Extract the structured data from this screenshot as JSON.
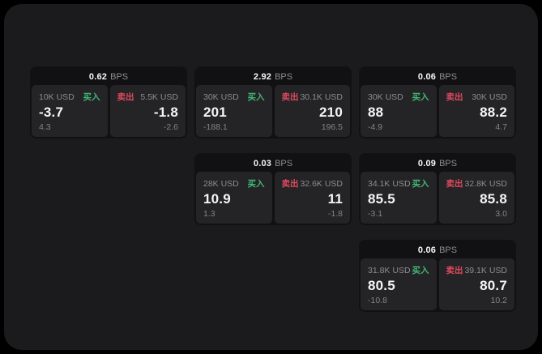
{
  "colors": {
    "page_bg": "#000000",
    "panel_bg": "#1b1b1d",
    "card_bg": "#111113",
    "tile_bg": "#242426",
    "buy": "#41b877",
    "sell": "#de4a5e",
    "text_primary": "#f5f5f6",
    "text_muted": "#8c8c90",
    "text_dim": "#838387"
  },
  "labels": {
    "bps_unit": "BPS",
    "buy": "买入",
    "sell": "卖出"
  },
  "cards": [
    {
      "grid": {
        "row": 1,
        "col": 1
      },
      "bps": "0.62",
      "buy": {
        "amount": "10K USD",
        "value": "-3.7",
        "delta": "4.3"
      },
      "sell": {
        "amount": "5.5K USD",
        "value": "-1.8",
        "delta": "-2.6"
      }
    },
    {
      "grid": {
        "row": 1,
        "col": 2
      },
      "bps": "2.92",
      "buy": {
        "amount": "30K USD",
        "value": "201",
        "delta": "-188.1"
      },
      "sell": {
        "amount": "30.1K USD",
        "value": "210",
        "delta": "196.5"
      }
    },
    {
      "grid": {
        "row": 1,
        "col": 3
      },
      "bps": "0.06",
      "buy": {
        "amount": "30K USD",
        "value": "88",
        "delta": "-4.9"
      },
      "sell": {
        "amount": "30K USD",
        "value": "88.2",
        "delta": "4.7"
      }
    },
    {
      "grid": {
        "row": 2,
        "col": 2
      },
      "bps": "0.03",
      "buy": {
        "amount": "28K USD",
        "value": "10.9",
        "delta": "1.3"
      },
      "sell": {
        "amount": "32.6K USD",
        "value": "11",
        "delta": "-1.8"
      }
    },
    {
      "grid": {
        "row": 2,
        "col": 3
      },
      "bps": "0.09",
      "buy": {
        "amount": "34.1K USD",
        "value": "85.5",
        "delta": "-3.1"
      },
      "sell": {
        "amount": "32.8K USD",
        "value": "85.8",
        "delta": "3.0"
      }
    },
    {
      "grid": {
        "row": 3,
        "col": 3
      },
      "bps": "0.06",
      "buy": {
        "amount": "31.8K USD",
        "value": "80.5",
        "delta": "-10.8"
      },
      "sell": {
        "amount": "39.1K USD",
        "value": "80.7",
        "delta": "10.2"
      }
    }
  ]
}
